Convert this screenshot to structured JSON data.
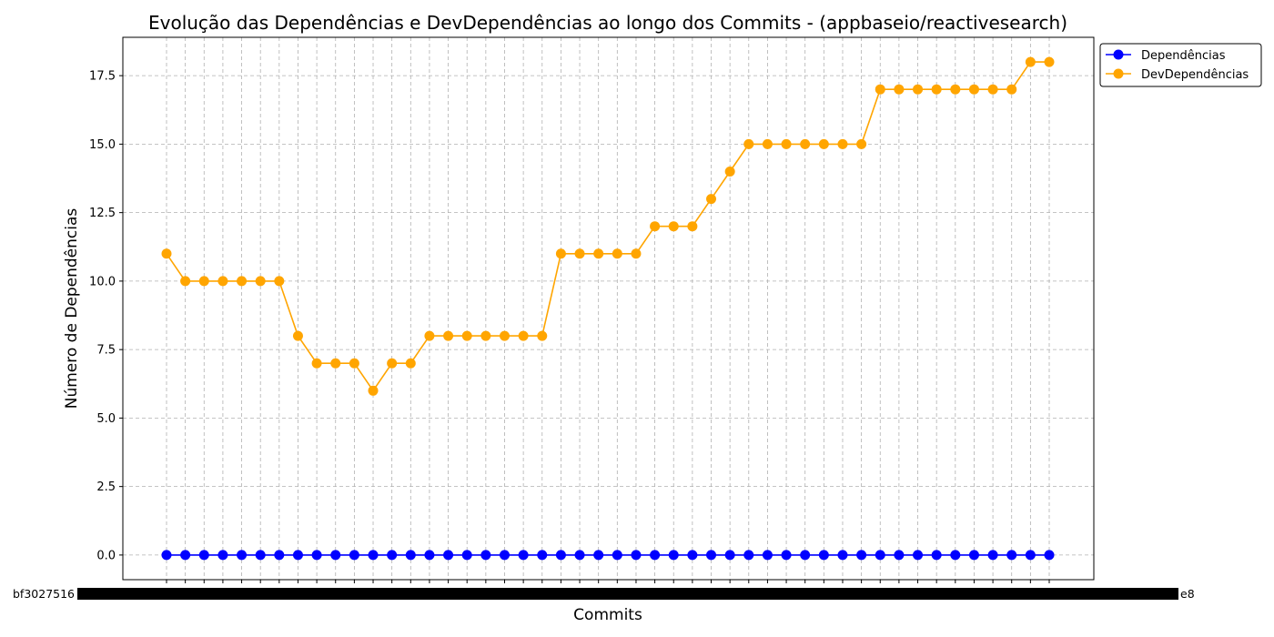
{
  "chart_data": {
    "type": "line",
    "title": "Evolução das Dependências e DevDependências ao longo dos Commits - (appbaseio/reactivesearch)",
    "xlabel": "Commits",
    "ylabel": "Número de Dependências",
    "ylim": [
      -0.9,
      18.9
    ],
    "yticks": [
      "0.0",
      "2.5",
      "5.0",
      "7.5",
      "10.0",
      "12.5",
      "15.0",
      "17.5"
    ],
    "ytick_values": [
      0,
      2.5,
      5,
      7.5,
      10,
      12.5,
      15,
      17.5
    ],
    "grid": true,
    "legend_position": "top-right",
    "x_first_label": "bf3027516",
    "x_last_label": "e8",
    "series": [
      {
        "name": "Dependências",
        "color": "#0000ff",
        "values": [
          0,
          0,
          0,
          0,
          0,
          0,
          0,
          0,
          0,
          0,
          0,
          0,
          0,
          0,
          0,
          0,
          0,
          0,
          0,
          0,
          0,
          0,
          0,
          0,
          0,
          0,
          0,
          0,
          0,
          0,
          0,
          0,
          0,
          0,
          0,
          0,
          0,
          0,
          0,
          0,
          0,
          0,
          0,
          0,
          0,
          0,
          0,
          0
        ]
      },
      {
        "name": "DevDependências",
        "color": "#ffa500",
        "values": [
          11,
          10,
          10,
          10,
          10,
          10,
          10,
          8,
          7,
          7,
          7,
          6,
          7,
          7,
          8,
          8,
          8,
          8,
          8,
          8,
          8,
          11,
          11,
          11,
          11,
          11,
          12,
          12,
          12,
          13,
          14,
          15,
          15,
          15,
          15,
          15,
          15,
          15,
          17,
          17,
          17,
          17,
          17,
          17,
          17,
          17,
          18,
          18
        ]
      }
    ]
  }
}
